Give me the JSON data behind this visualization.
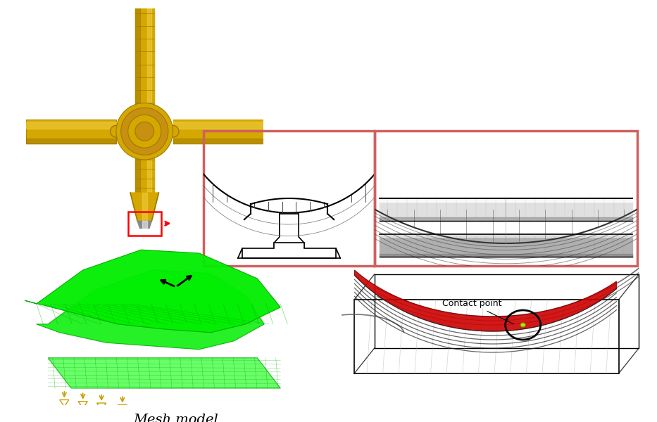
{
  "bg_color": "#ffffff",
  "pink_box_color": "#d06060",
  "green_mesh_color": "#00ee00",
  "green_dark": "#00aa00",
  "green_light": "#44ff44",
  "red_contact_color": "#cc0000",
  "gold_color": "#d4a800",
  "gold_light": "#f0cc40",
  "gold_dark": "#a07800",
  "gold_mid": "#c89010",
  "arrow_color": "#cc0000",
  "black": "#000000",
  "gray_light": "#e0e0e0",
  "gray_mid": "#b0b0b0",
  "gray_dark": "#808080",
  "label_mesh": "Mesh model",
  "label_contact": "Contact point",
  "font_size_label": 14,
  "font_size_contact": 9
}
